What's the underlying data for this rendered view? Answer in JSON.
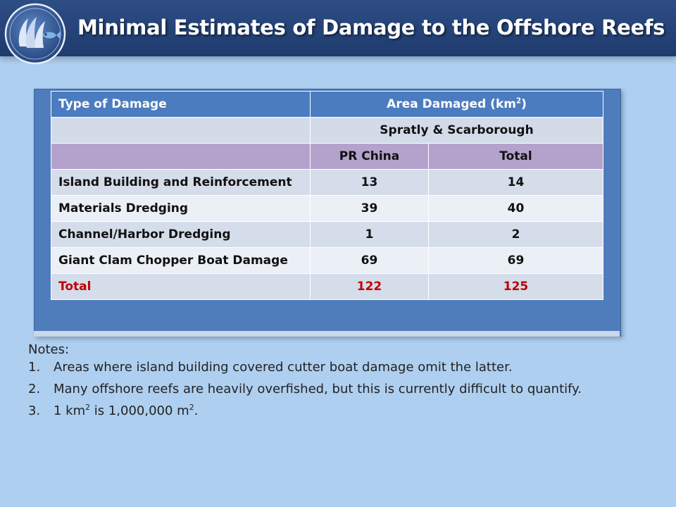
{
  "slide": {
    "title": "Minimal Estimates of Damage to the Offshore Reefs"
  },
  "colors": {
    "header_bg": "#1f3b6e",
    "table_header": "#4b7cc0",
    "row_lavender": "#b5a2cc",
    "total_red": "#c00000",
    "slide_bg": "#aecff0"
  },
  "logo": {
    "icon": "reef-fish-logo-icon"
  },
  "table": {
    "header": {
      "type_label": "Type of Damage",
      "area_label": "Area Damaged (km",
      "area_sup": "2",
      "area_close": ")"
    },
    "region_label": "Spratly & Scarborough",
    "col_china": "PR China",
    "col_total": "Total",
    "rows": [
      {
        "type": "Island Building and Reinforcement",
        "china": "13",
        "total": "14"
      },
      {
        "type": "Materials Dredging",
        "china": "39",
        "total": "40"
      },
      {
        "type": "Channel/Harbor Dredging",
        "china": "1",
        "total": "2"
      },
      {
        "type": "Giant Clam Chopper Boat Damage",
        "china": "69",
        "total": "69"
      }
    ],
    "total_row": {
      "label": "Total",
      "china": "122",
      "total": "125"
    }
  },
  "notes": {
    "heading": "Notes:",
    "items": [
      {
        "num": "1.",
        "text": "Areas where island building covered cutter boat damage omit the latter."
      },
      {
        "num": "2.",
        "text": "Many offshore reefs are heavily overfished, but this is currently difficult to quantify."
      },
      {
        "num": "3.",
        "part1": "1 km",
        "sup1": "2",
        "part2": " is 1,000,000 m",
        "sup2": "2",
        "part3": "."
      }
    ]
  }
}
